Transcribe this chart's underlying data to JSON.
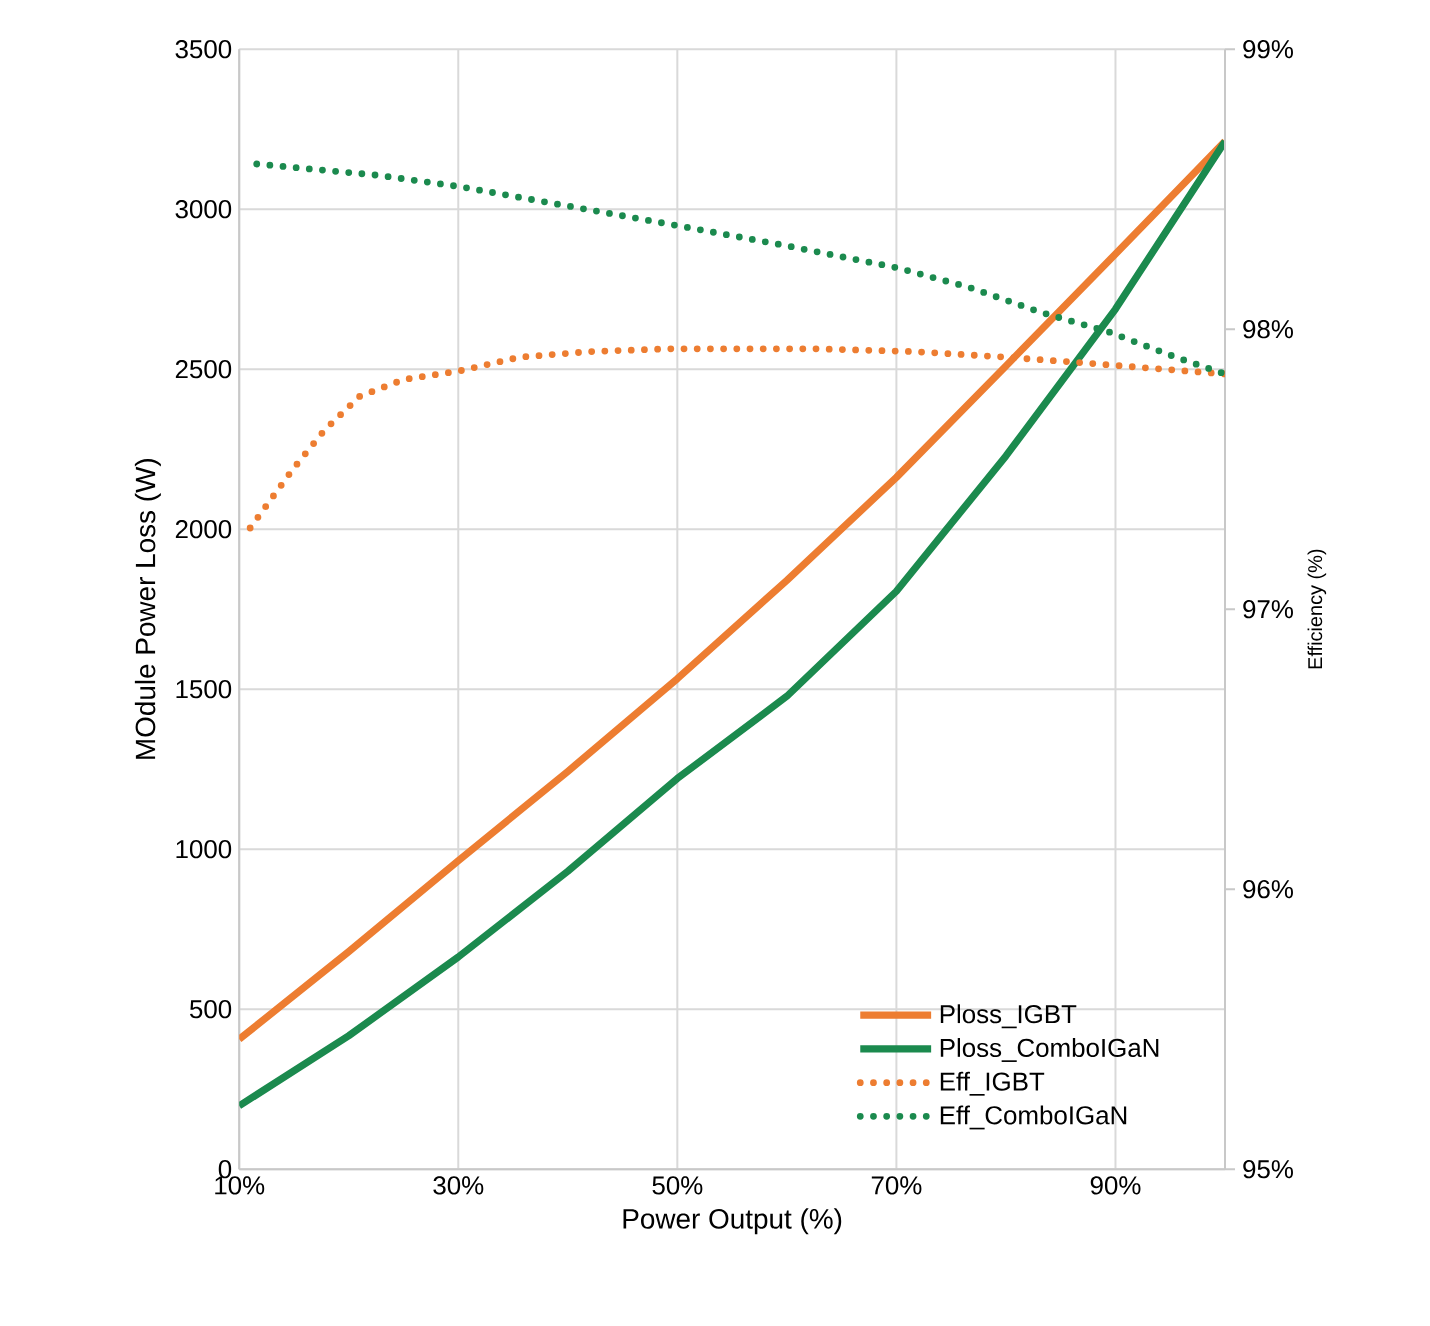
{
  "chart_data": {
    "type": "line",
    "xlabel": "Power Output (%)",
    "ylabel": "MOdule Power Loss (W)",
    "y2label": "Efficiency (%)",
    "xlim": [
      10,
      100
    ],
    "xticks": [
      {
        "value": 10,
        "label": "10%"
      },
      {
        "value": 30,
        "label": "30%"
      },
      {
        "value": 50,
        "label": "50%"
      },
      {
        "value": 70,
        "label": "70%"
      },
      {
        "value": 90,
        "label": "90%"
      }
    ],
    "ylim": [
      0,
      3500
    ],
    "yticks": [
      0,
      500,
      1000,
      1500,
      2000,
      2500,
      3000,
      3500
    ],
    "y2lim": [
      95,
      99
    ],
    "y2ticks": [
      {
        "value": 95,
        "label": "95%"
      },
      {
        "value": 96,
        "label": "96%"
      },
      {
        "value": 97,
        "label": "97%"
      },
      {
        "value": 98,
        "label": "98%"
      },
      {
        "value": 99,
        "label": "99%"
      }
    ],
    "grid": true,
    "legend": "bottom right",
    "marker": "none",
    "series": [
      {
        "name": "Ploss_IGBT",
        "color": "#ed7d31",
        "line_style": "solid",
        "x": [
          10,
          20,
          30,
          40,
          50,
          60,
          70,
          80,
          90,
          100
        ],
        "values": [
          406,
          680,
          964,
          1243,
          1533,
          1840,
          2162,
          2510,
          2860,
          3212
        ]
      },
      {
        "name": "Ploss_ComboIGaN",
        "color": "#1b8a4e",
        "line_style": "solid",
        "x": [
          10,
          20,
          30,
          40,
          50,
          60,
          70,
          80,
          90,
          100
        ],
        "values": [
          198,
          417,
          663,
          931,
          1221,
          1478,
          1806,
          2229,
          2688,
          3212
        ]
      },
      {
        "name": "Eff_IGBT",
        "color": "#ed7d31",
        "line_style": "dotted",
        "axis": "y2",
        "x": [
          11,
          14.9,
          17.8,
          21,
          25,
          30,
          35.6,
          42,
          49.3,
          56,
          62.5,
          71.6,
          80,
          87,
          93.4,
          100
        ],
        "values": [
          97.29,
          97.5,
          97.64,
          97.76,
          97.82,
          97.85,
          97.9,
          97.92,
          97.93,
          97.93,
          97.93,
          97.92,
          97.9,
          97.88,
          97.86,
          97.84
        ]
      },
      {
        "name": "Eff_ComboIGaN",
        "color": "#1b8a4e",
        "line_style": "dotted",
        "axis": "y2",
        "x": [
          11.6,
          22.6,
          30,
          40,
          50,
          59.7,
          70,
          76.6,
          83.2,
          89.4,
          95.5,
          100
        ],
        "values": [
          98.59,
          98.55,
          98.51,
          98.44,
          98.37,
          98.3,
          98.22,
          98.15,
          98.06,
          97.99,
          97.9,
          97.84
        ]
      }
    ]
  }
}
